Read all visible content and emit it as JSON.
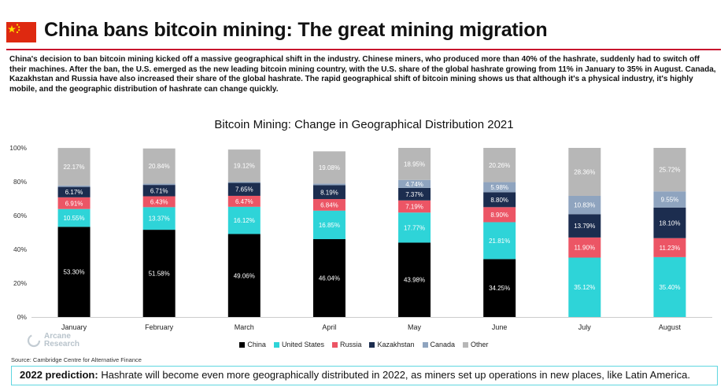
{
  "header": {
    "title": "China bans bitcoin mining: The great mining migration",
    "flag_icon": "china-flag-icon"
  },
  "description": "China's decision to ban bitcoin mining kicked off a massive geographical shift in the industry. Chinese miners, who produced more than 40% of the hashrate, suddenly had to switch off their machines. After the ban, the U.S. emerged as the new leading bitcoin mining country, with the U.S. share of the global hashrate growing from 11% in January to 35% in August. Canada, Kazakhstan and Russia have also increased their share of the global hashrate. The rapid geographical shift of bitcoin mining shows us that although it's a physical industry, it's highly mobile, and the geographic distribution of hashrate can change quickly.",
  "chart_data": {
    "type": "bar",
    "stacked": true,
    "title": "Bitcoin Mining: Change in Geographical Distribution 2021",
    "categories": [
      "January",
      "February",
      "March",
      "April",
      "May",
      "June",
      "July",
      "August"
    ],
    "ylim": [
      0,
      100
    ],
    "y_ticks": [
      "0%",
      "20%",
      "40%",
      "60%",
      "80%",
      "100%"
    ],
    "legend_position": "bottom",
    "series": [
      {
        "name": "China",
        "color": "#000000",
        "label_color": "#ffffff",
        "values": [
          53.3,
          51.58,
          49.06,
          46.04,
          43.98,
          34.25,
          0,
          0
        ],
        "labels": [
          "53.30%",
          "51.58%",
          "49.06%",
          "46.04%",
          "43.98%",
          "34.25%",
          "",
          ""
        ]
      },
      {
        "name": "United States",
        "color": "#2ed4d8",
        "label_color": "#ffffff",
        "values": [
          10.55,
          13.37,
          16.12,
          16.85,
          17.77,
          21.81,
          35.12,
          35.4
        ],
        "labels": [
          "10.55%",
          "13.37%",
          "16.12%",
          "16.85%",
          "17.77%",
          "21.81%",
          "35.12%",
          "35.40%"
        ]
      },
      {
        "name": "Russia",
        "color": "#ec5565",
        "label_color": "#ffffff",
        "values": [
          6.91,
          6.43,
          6.47,
          6.84,
          7.19,
          8.9,
          11.9,
          11.23
        ],
        "labels": [
          "6.91%",
          "6.43%",
          "6.47%",
          "6.84%",
          "7.19%",
          "8.90%",
          "11.90%",
          "11.23%"
        ]
      },
      {
        "name": "Kazakhstan",
        "color": "#1c2d4f",
        "label_color": "#ffffff",
        "values": [
          6.17,
          6.71,
          7.65,
          8.19,
          7.37,
          8.8,
          13.79,
          18.1
        ],
        "labels": [
          "6.17%",
          "6.71%",
          "7.65%",
          "8.19%",
          "7.37%",
          "8.80%",
          "13.79%",
          "18.10%"
        ]
      },
      {
        "name": "Canada",
        "color": "#8fa4bf",
        "label_color": "#ffffff",
        "values": [
          0.85,
          0.73,
          0.61,
          0.96,
          4.74,
          5.98,
          10.83,
          9.55
        ],
        "labels": [
          "",
          "",
          "",
          "",
          "4.74%",
          "5.98%",
          "10.83%",
          "9.55%"
        ]
      },
      {
        "name": "Other",
        "color": "#b7b7b7",
        "label_color": "#ffffff",
        "values": [
          22.17,
          20.84,
          19.12,
          19.08,
          18.95,
          20.26,
          28.36,
          25.72
        ],
        "labels": [
          "22.17%",
          "20.84%",
          "19.12%",
          "19.08%",
          "18.95%",
          "20.26%",
          "28.36%",
          "25.72%"
        ]
      }
    ]
  },
  "logo": {
    "line1": "Arcane",
    "line2": "Research"
  },
  "source": "Source: Cambridge Centre for Alternative Finance",
  "prediction": {
    "label": "2022 prediction:",
    "text": " Hashrate will become even more geographically distributed in 2022, as miners set up operations in new places, like Latin America."
  }
}
